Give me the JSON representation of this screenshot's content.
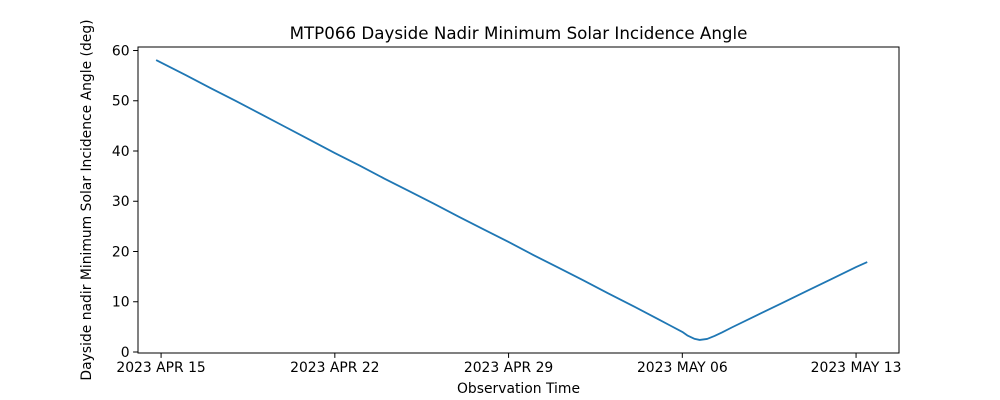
{
  "chart_data": {
    "type": "line",
    "title": "MTP066 Dayside Nadir Minimum Solar Incidence Angle",
    "xlabel": "Observation Time",
    "ylabel": "Dayside nadir Minimum Solar Incidence Angle (deg)",
    "background_color": "#ffffff",
    "line_color": "#1f77b4",
    "axis_color": "#000000",
    "grid": false,
    "legend": null,
    "x_axis": {
      "unit": "days since 2023 APR 15",
      "xlim_days": [
        -0.93,
        29.73
      ],
      "ticks": [
        {
          "day": 0,
          "label": "2023 APR 15"
        },
        {
          "day": 7,
          "label": "2023 APR 22"
        },
        {
          "day": 14,
          "label": "2023 APR 29"
        },
        {
          "day": 21,
          "label": "2023 MAY 06"
        },
        {
          "day": 28,
          "label": "2023 MAY 13"
        }
      ]
    },
    "y_axis": {
      "unit": "deg",
      "ylim": [
        -0.2,
        60.7
      ],
      "ticks": [
        0,
        10,
        20,
        30,
        40,
        50,
        60
      ]
    },
    "series": [
      {
        "name": "dayside-nadir-minimum-solar-incidence-angle",
        "color": "#1f77b4",
        "points_day_deg": [
          [
            -0.2,
            58.1
          ],
          [
            1,
            55.1
          ],
          [
            2,
            52.5
          ],
          [
            3,
            50.0
          ],
          [
            4,
            47.4
          ],
          [
            5,
            44.8
          ],
          [
            6,
            42.2
          ],
          [
            7,
            39.6
          ],
          [
            8,
            37.1
          ],
          [
            9,
            34.5
          ],
          [
            10,
            32.0
          ],
          [
            11,
            29.5
          ],
          [
            12,
            26.9
          ],
          [
            13,
            24.4
          ],
          [
            14,
            21.9
          ],
          [
            15,
            19.3
          ],
          [
            16,
            16.8
          ],
          [
            17,
            14.3
          ],
          [
            18,
            11.7
          ],
          [
            19,
            9.2
          ],
          [
            20,
            6.6
          ],
          [
            20.5,
            5.3
          ],
          [
            21,
            4.0
          ],
          [
            21.2,
            3.3
          ],
          [
            21.5,
            2.6
          ],
          [
            21.7,
            2.4
          ],
          [
            22,
            2.6
          ],
          [
            22.3,
            3.2
          ],
          [
            22.6,
            3.9
          ],
          [
            23,
            4.9
          ],
          [
            24,
            7.3
          ],
          [
            25,
            9.7
          ],
          [
            26,
            12.1
          ],
          [
            27,
            14.5
          ],
          [
            28,
            16.9
          ],
          [
            28.45,
            17.9
          ]
        ],
        "min_point": {
          "day": 21.6,
          "value": 2.3,
          "date": "2023 MAY 07"
        },
        "start_point": {
          "day": -0.2,
          "value": 58.1,
          "date": "2023 APR 15"
        },
        "end_point": {
          "day": 28.45,
          "value": 17.9,
          "date": "2023 MAY 13"
        }
      }
    ]
  }
}
